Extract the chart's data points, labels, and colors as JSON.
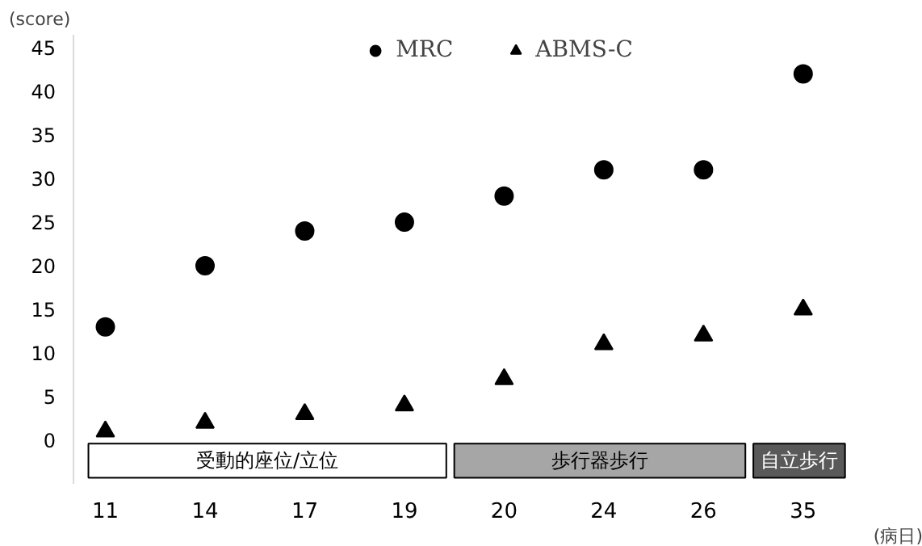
{
  "chart_data": {
    "type": "scatter",
    "categories": [
      "11",
      "14",
      "17",
      "19",
      "20",
      "24",
      "26",
      "35"
    ],
    "ylabel": "(score)",
    "xlabel": "(病日)",
    "ylim": [
      -5,
      46.5
    ],
    "yticks": [
      0,
      5,
      10,
      15,
      20,
      25,
      30,
      35,
      40,
      45
    ],
    "grid": false,
    "legend": "top",
    "series": [
      {
        "name": "MRC",
        "color": "#000000",
        "marker": "circle",
        "values": [
          13,
          20,
          24,
          25,
          28,
          31,
          31,
          42
        ]
      },
      {
        "name": "ABMS-C",
        "color": "#000000",
        "marker": "triangle",
        "values": [
          1,
          2,
          3,
          4,
          7,
          11,
          12,
          15
        ]
      }
    ],
    "bands": [
      {
        "axis": "x",
        "from": "11",
        "to": "19",
        "label": "受動的座位/立位",
        "color": "#ffffff"
      },
      {
        "axis": "x",
        "from": "20",
        "to": "26",
        "label": "歩行器歩行",
        "color": "#a6a6a6"
      },
      {
        "axis": "x",
        "from": "35",
        "to": "35",
        "label": "自立歩行",
        "color": "#595959"
      }
    ]
  }
}
